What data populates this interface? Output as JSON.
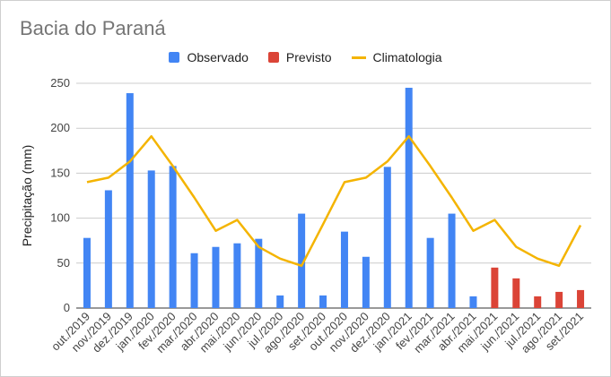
{
  "chart_data": {
    "type": "bar",
    "title": "Bacia do Paraná",
    "ylabel": "Precipitação (mm)",
    "xlabel": "",
    "ylim": [
      0,
      250
    ],
    "yticks": [
      "0",
      "50",
      "100",
      "150",
      "200",
      "250"
    ],
    "grid": true,
    "legend_position": "top",
    "categories": [
      "out./2019",
      "nov./2019",
      "dez./2019",
      "jan./2020",
      "fev./2020",
      "mar./2020",
      "abr./2020",
      "mai./2020",
      "jun./2020",
      "jul./2020",
      "ago./2020",
      "set./2020",
      "out./2020",
      "nov./2020",
      "dez./2020",
      "jan./2021",
      "fev./2021",
      "mar./2021",
      "abr./2021",
      "mai./2021",
      "jun./2021",
      "jul./2021",
      "ago./2021",
      "set./2021"
    ],
    "series": [
      {
        "name": "Observado",
        "type": "bar",
        "color": "#4285f4",
        "values": [
          78,
          131,
          239,
          153,
          158,
          61,
          68,
          72,
          77,
          14,
          105,
          14,
          85,
          57,
          157,
          245,
          78,
          105,
          13,
          null,
          null,
          null,
          null,
          null
        ]
      },
      {
        "name": "Previsto",
        "type": "bar",
        "color": "#db4437",
        "values": [
          null,
          null,
          null,
          null,
          null,
          null,
          null,
          null,
          null,
          null,
          null,
          null,
          null,
          null,
          null,
          null,
          null,
          null,
          null,
          45,
          33,
          13,
          18,
          20
        ]
      },
      {
        "name": "Climatologia",
        "type": "line",
        "color": "#f4b400",
        "values": [
          140,
          145,
          163,
          191,
          158,
          123,
          86,
          98,
          68,
          55,
          47,
          93,
          140,
          145,
          163,
          191,
          158,
          123,
          86,
          98,
          68,
          55,
          47,
          92
        ]
      }
    ]
  }
}
